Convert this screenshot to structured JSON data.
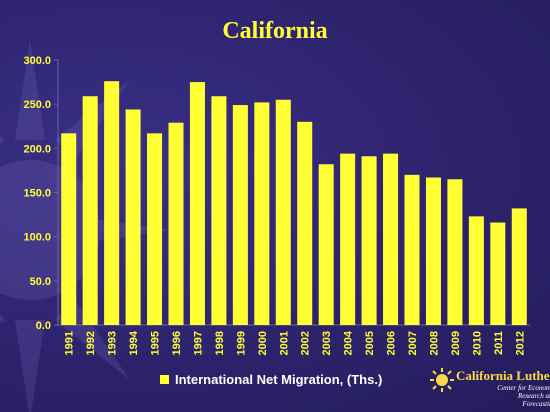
{
  "title": "California",
  "colors": {
    "background": "#2e2470",
    "bar": "#ffff33",
    "axis_text": "#ffff33",
    "gridline": "#6b64a8"
  },
  "legend": {
    "label": "International Net Migration, (Ths.)",
    "placement": "bottom"
  },
  "logo": {
    "name": "California Lutheran",
    "subtitle_line1": "Center for Economic",
    "subtitle_line2": "Research and Forecasting"
  },
  "chart_data": {
    "type": "bar",
    "title": "California",
    "xlabel": "",
    "ylabel": "",
    "ylim": [
      0,
      300
    ],
    "yticks": [
      "0.0",
      "50.0",
      "100.0",
      "150.0",
      "200.0",
      "250.0",
      "300.0"
    ],
    "grid": false,
    "legend_placement": "bottom",
    "categories": [
      "1991",
      "1992",
      "1993",
      "1994",
      "1995",
      "1996",
      "1997",
      "1998",
      "1999",
      "2000",
      "2001",
      "2002",
      "2003",
      "2004",
      "2005",
      "2006",
      "2007",
      "2008",
      "2009",
      "2010",
      "2011",
      "2012"
    ],
    "series": [
      {
        "name": "International Net Migration, (Ths.)",
        "values": [
          217,
          259,
          276,
          244,
          217,
          229,
          275,
          259,
          249,
          252,
          255,
          230,
          182,
          194,
          191,
          194,
          170,
          167,
          165,
          123,
          116,
          132
        ]
      }
    ]
  }
}
